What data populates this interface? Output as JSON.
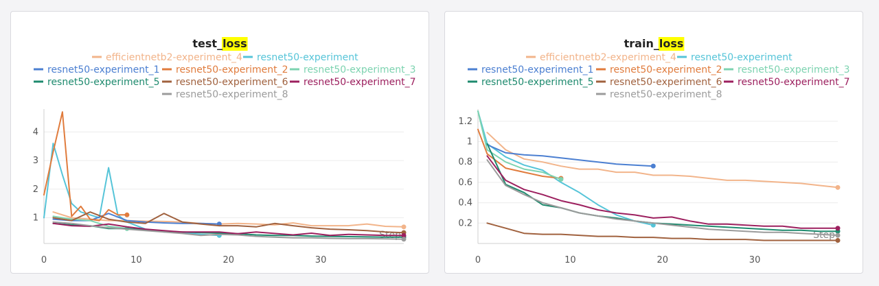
{
  "chart_data": [
    {
      "type": "line",
      "title_prefix": "test_",
      "title_highlight": "loss",
      "highlight_color": "#ffff00",
      "xlabel": "Step",
      "xlim": [
        0,
        39
      ],
      "ylim": [
        0.1,
        4.8
      ],
      "xticks": [
        0,
        10,
        20,
        30
      ],
      "yticks": [
        1,
        2,
        3,
        4
      ],
      "series": [
        {
          "name": "efficientnetb2-experiment_4",
          "color": "#f2b48a",
          "x": [
            1,
            3,
            5,
            7,
            9,
            11,
            13,
            15,
            17,
            19,
            21,
            23,
            25,
            27,
            29,
            31,
            33,
            35,
            37,
            39
          ],
          "y": [
            1.2,
            1.0,
            0.95,
            0.9,
            0.9,
            0.88,
            0.87,
            0.85,
            0.8,
            0.78,
            0.8,
            0.78,
            0.75,
            0.82,
            0.72,
            0.72,
            0.72,
            0.78,
            0.7,
            0.68
          ]
        },
        {
          "name": "resnet50-experiment",
          "color": "#55c4d8",
          "x": [
            0,
            1,
            2,
            3,
            4,
            5,
            6,
            7,
            8,
            9,
            11,
            13,
            15,
            17,
            19
          ],
          "y": [
            1.0,
            3.6,
            2.5,
            1.5,
            1.2,
            1.1,
            1.0,
            2.75,
            1.1,
            0.85,
            0.6,
            0.5,
            0.48,
            0.42,
            0.38
          ]
        },
        {
          "name": "resnet50-experiment_1",
          "color": "#4b7fd1",
          "x": [
            1,
            3,
            5,
            7,
            9,
            11,
            13,
            15,
            17,
            19
          ],
          "y": [
            0.95,
            0.9,
            0.9,
            1.15,
            0.9,
            0.85,
            0.82,
            0.8,
            0.8,
            0.78
          ]
        },
        {
          "name": "resnet50-experiment_2",
          "color": "#e07b3c",
          "x": [
            0,
            1,
            2,
            3,
            4,
            5,
            6,
            7,
            8,
            9
          ],
          "y": [
            1.8,
            3.3,
            4.7,
            1.05,
            1.4,
            0.95,
            0.9,
            1.28,
            1.1,
            1.1
          ]
        },
        {
          "name": "resnet50-experiment_3",
          "color": "#7dd3b0",
          "x": [
            1,
            3,
            5,
            7,
            9
          ],
          "y": [
            1.05,
            0.95,
            0.9,
            0.7,
            0.62
          ]
        },
        {
          "name": "resnet50-experiment_5",
          "color": "#1e8a6e",
          "x": [
            1,
            3,
            5,
            7,
            9,
            11,
            13,
            15,
            17,
            19,
            21,
            23,
            25,
            27,
            29,
            31,
            33,
            35,
            37,
            39
          ],
          "y": [
            0.8,
            0.75,
            0.72,
            0.62,
            0.62,
            0.58,
            0.52,
            0.5,
            0.48,
            0.46,
            0.44,
            0.4,
            0.38,
            0.38,
            0.36,
            0.35,
            0.34,
            0.33,
            0.32,
            0.32
          ]
        },
        {
          "name": "resnet50-experiment_6",
          "color": "#a0613e",
          "x": [
            1,
            3,
            5,
            7,
            9,
            11,
            13,
            15,
            17,
            19,
            21,
            23,
            25,
            27,
            29,
            31,
            33,
            35,
            37,
            39
          ],
          "y": [
            1.0,
            0.9,
            1.2,
            0.95,
            0.85,
            0.8,
            1.15,
            0.85,
            0.78,
            0.72,
            0.72,
            0.68,
            0.8,
            0.72,
            0.65,
            0.6,
            0.58,
            0.55,
            0.5,
            0.48
          ]
        },
        {
          "name": "resnet50-experiment_7",
          "color": "#9c1f5e",
          "x": [
            1,
            3,
            5,
            7,
            9,
            11,
            13,
            15,
            17,
            19,
            21,
            23,
            25,
            27,
            29,
            31,
            33,
            35,
            37,
            39
          ],
          "y": [
            0.8,
            0.72,
            0.7,
            0.78,
            0.68,
            0.6,
            0.55,
            0.5,
            0.5,
            0.5,
            0.44,
            0.5,
            0.45,
            0.4,
            0.46,
            0.38,
            0.42,
            0.4,
            0.38,
            0.38
          ]
        },
        {
          "name": "resnet50-experiment_8",
          "color": "#9b9b9b",
          "x": [
            1,
            3,
            5,
            7,
            9,
            11,
            13,
            15,
            17,
            19,
            21,
            23,
            25,
            27,
            29,
            31,
            33,
            35,
            37,
            39
          ],
          "y": [
            0.85,
            0.8,
            0.72,
            0.65,
            0.6,
            0.55,
            0.5,
            0.45,
            0.38,
            0.42,
            0.4,
            0.35,
            0.32,
            0.3,
            0.3,
            0.28,
            0.27,
            0.27,
            0.26,
            0.25
          ]
        }
      ]
    },
    {
      "type": "line",
      "title_prefix": "train_",
      "title_highlight": "loss",
      "highlight_color": "#ffff00",
      "xlabel": "Step",
      "xlim": [
        0,
        39
      ],
      "ylim": [
        0.0,
        1.32
      ],
      "xticks": [
        0,
        10,
        20,
        30
      ],
      "yticks": [
        0.2,
        0.4,
        0.6,
        0.8,
        1,
        1.2
      ],
      "series": [
        {
          "name": "efficientnetb2-experiment_4",
          "color": "#f2b48a",
          "x": [
            1,
            3,
            5,
            7,
            9,
            11,
            13,
            15,
            17,
            19,
            21,
            23,
            25,
            27,
            29,
            31,
            33,
            35,
            37,
            39
          ],
          "y": [
            1.09,
            0.92,
            0.83,
            0.8,
            0.76,
            0.73,
            0.73,
            0.7,
            0.7,
            0.67,
            0.67,
            0.66,
            0.64,
            0.62,
            0.62,
            0.61,
            0.6,
            0.59,
            0.57,
            0.55
          ]
        },
        {
          "name": "resnet50-experiment",
          "color": "#55c4d8",
          "x": [
            0,
            1,
            3,
            5,
            7,
            9,
            11,
            13,
            15,
            17,
            19
          ],
          "y": [
            1.3,
            0.98,
            0.85,
            0.77,
            0.72,
            0.6,
            0.5,
            0.38,
            0.28,
            0.22,
            0.18
          ]
        },
        {
          "name": "resnet50-experiment_1",
          "color": "#4b7fd1",
          "x": [
            1,
            3,
            5,
            7,
            9,
            11,
            13,
            15,
            17,
            19
          ],
          "y": [
            0.97,
            0.89,
            0.87,
            0.86,
            0.84,
            0.82,
            0.8,
            0.78,
            0.77,
            0.76
          ]
        },
        {
          "name": "resnet50-experiment_2",
          "color": "#e07b3c",
          "x": [
            0,
            1,
            3,
            5,
            7,
            9
          ],
          "y": [
            1.12,
            0.88,
            0.74,
            0.7,
            0.66,
            0.64
          ]
        },
        {
          "name": "resnet50-experiment_3",
          "color": "#7dd3b0",
          "x": [
            0,
            1,
            3,
            5,
            7,
            9
          ],
          "y": [
            1.3,
            0.92,
            0.8,
            0.73,
            0.7,
            0.63
          ]
        },
        {
          "name": "resnet50-experiment_5",
          "color": "#1e8a6e",
          "x": [
            1,
            3,
            5,
            7,
            9,
            11,
            13,
            15,
            17,
            19,
            21,
            23,
            25,
            27,
            29,
            31,
            33,
            35,
            37,
            39
          ],
          "y": [
            0.98,
            0.58,
            0.5,
            0.38,
            0.35,
            0.3,
            0.27,
            0.25,
            0.22,
            0.2,
            0.19,
            0.18,
            0.17,
            0.16,
            0.15,
            0.14,
            0.13,
            0.13,
            0.12,
            0.12
          ]
        },
        {
          "name": "resnet50-experiment_6",
          "color": "#a0613e",
          "x": [
            1,
            3,
            5,
            7,
            9,
            11,
            13,
            15,
            17,
            19,
            21,
            23,
            25,
            27,
            29,
            31,
            33,
            35,
            37,
            39
          ],
          "y": [
            0.2,
            0.15,
            0.1,
            0.09,
            0.09,
            0.08,
            0.07,
            0.07,
            0.06,
            0.06,
            0.05,
            0.05,
            0.04,
            0.04,
            0.04,
            0.03,
            0.03,
            0.03,
            0.03,
            0.03
          ]
        },
        {
          "name": "resnet50-experiment_7",
          "color": "#9c1f5e",
          "x": [
            1,
            3,
            5,
            7,
            9,
            11,
            13,
            15,
            17,
            19,
            21,
            23,
            25,
            27,
            29,
            31,
            33,
            35,
            37,
            39
          ],
          "y": [
            0.86,
            0.62,
            0.53,
            0.48,
            0.42,
            0.38,
            0.33,
            0.3,
            0.28,
            0.25,
            0.26,
            0.22,
            0.19,
            0.19,
            0.18,
            0.17,
            0.17,
            0.15,
            0.15,
            0.15
          ]
        },
        {
          "name": "resnet50-experiment_8",
          "color": "#9b9b9b",
          "x": [
            1,
            3,
            5,
            7,
            9,
            11,
            13,
            15,
            17,
            19,
            21,
            23,
            25,
            27,
            29,
            31,
            33,
            35,
            37,
            39
          ],
          "y": [
            0.82,
            0.57,
            0.48,
            0.4,
            0.35,
            0.3,
            0.27,
            0.24,
            0.22,
            0.2,
            0.18,
            0.16,
            0.14,
            0.13,
            0.12,
            0.11,
            0.11,
            0.1,
            0.09,
            0.08
          ]
        }
      ]
    }
  ]
}
